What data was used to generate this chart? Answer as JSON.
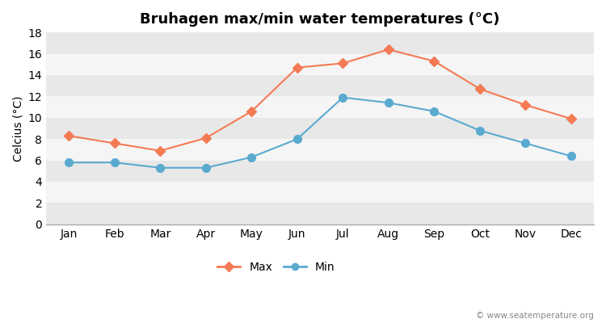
{
  "title": "Bruhagen max/min water temperatures (°C)",
  "ylabel": "Celcius (°C)",
  "months": [
    "Jan",
    "Feb",
    "Mar",
    "Apr",
    "May",
    "Jun",
    "Jul",
    "Aug",
    "Sep",
    "Oct",
    "Nov",
    "Dec"
  ],
  "max_values": [
    8.3,
    7.6,
    6.9,
    8.1,
    10.6,
    14.7,
    15.1,
    16.4,
    15.3,
    12.7,
    11.2,
    9.9
  ],
  "min_values": [
    5.8,
    5.8,
    5.3,
    5.3,
    6.3,
    8.0,
    11.9,
    11.4,
    10.6,
    8.8,
    7.6,
    6.4
  ],
  "max_color": "#f47a54",
  "min_color": "#5aaad0",
  "bg_color": "#ffffff",
  "band_colors": [
    "#e8e8e8",
    "#f5f5f5"
  ],
  "ylim": [
    0,
    18
  ],
  "yticks": [
    0,
    2,
    4,
    6,
    8,
    10,
    12,
    14,
    16,
    18
  ],
  "legend_labels": [
    "Max",
    "Min"
  ],
  "watermark": "© www.seatemperature.org",
  "title_fontsize": 13,
  "axis_label_fontsize": 10,
  "tick_fontsize": 10
}
